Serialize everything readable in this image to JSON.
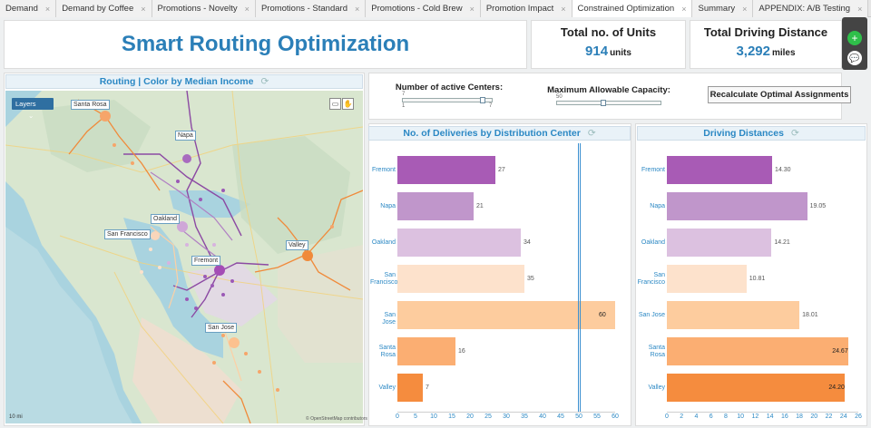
{
  "tabs": [
    {
      "label": "Demand",
      "active": false
    },
    {
      "label": "Demand by Coffee",
      "active": false
    },
    {
      "label": "Promotions - Novelty",
      "active": false
    },
    {
      "label": "Promotions - Standard",
      "active": false
    },
    {
      "label": "Promotions - Cold Brew",
      "active": false
    },
    {
      "label": "Promotion Impact",
      "active": false
    },
    {
      "label": "Constrained Optimization",
      "active": true
    },
    {
      "label": "Summary",
      "active": false
    },
    {
      "label": "APPENDIX: A/B Testing",
      "active": false
    }
  ],
  "header": {
    "title": "Smart Routing Optimization"
  },
  "kpis": {
    "units": {
      "title": "Total no. of Units",
      "value": "914",
      "unit": "units"
    },
    "distance": {
      "title": "Total Driving Distance",
      "value": "3,292",
      "unit": "miles"
    }
  },
  "map": {
    "title": "Routing  |  Color by Median Income",
    "layers_label": "Layers",
    "scale_label": "10 mi",
    "attribution": "© OpenStreetMap contributors",
    "labels": {
      "santa_rosa": "Santa Rosa",
      "napa": "Napa",
      "oakland": "Oakland",
      "san_francisco": "San Francisco",
      "valley": "Valley",
      "fremont": "Fremont",
      "san_jose": "San Jose"
    }
  },
  "controls": {
    "centers": {
      "label": "Number of active Centers:",
      "value": "7",
      "min": "1",
      "max": "7"
    },
    "capacity": {
      "label": "Maximum Allowable Capacity:",
      "value": "50"
    },
    "recalc_label": "Recalculate Optimal Assignments"
  },
  "colors": {
    "fremont": "#a85bb5",
    "napa": "#c096cb",
    "oakland": "#dcc1e0",
    "san_francisco": "#fde2cc",
    "san_jose": "#fdcc9e",
    "santa_rosa": "#fbae72",
    "valley": "#f58c3e"
  },
  "chart_data": [
    {
      "type": "bar",
      "orientation": "horizontal",
      "title": "No. of Deliveries by Distribution Center",
      "categories": [
        "Fremont",
        "Napa",
        "Oakland",
        "San Francisco",
        "San Jose",
        "Santa Rosa",
        "Valley"
      ],
      "values": [
        27,
        21,
        34,
        35,
        60,
        16,
        7
      ],
      "value_labels": [
        "27",
        "21",
        "34",
        "35",
        "60",
        "16",
        "7"
      ],
      "xlim": [
        0,
        60
      ],
      "ticks": [
        0,
        5,
        10,
        15,
        20,
        25,
        30,
        35,
        40,
        45,
        50,
        55,
        60
      ],
      "reference_line": 50
    },
    {
      "type": "bar",
      "orientation": "horizontal",
      "title": "Driving Distances",
      "categories": [
        "Fremont",
        "Napa",
        "Oakland",
        "San Francisco",
        "San Jose",
        "Santa Rosa",
        "Valley"
      ],
      "values": [
        14.3,
        19.05,
        14.21,
        10.81,
        18.01,
        24.67,
        24.2
      ],
      "value_labels": [
        "14.30",
        "19.05",
        "14.21",
        "10.81",
        "18.01",
        "24.67",
        "24.20"
      ],
      "xlim": [
        0,
        26
      ],
      "ticks": [
        0,
        2,
        4,
        6,
        8,
        10,
        12,
        14,
        16,
        18,
        20,
        22,
        24,
        26
      ]
    }
  ]
}
